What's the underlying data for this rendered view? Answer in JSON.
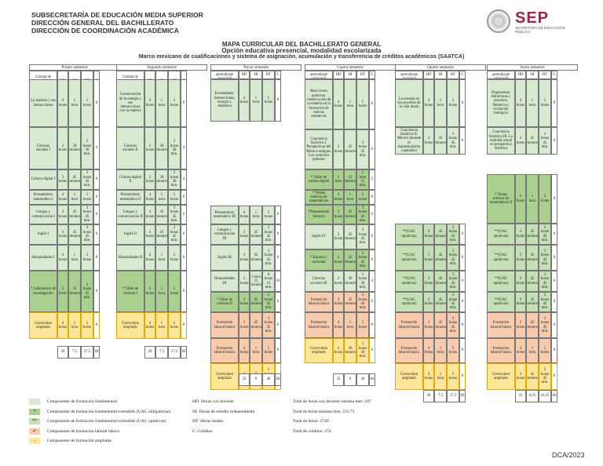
{
  "header": {
    "lines": [
      "SUBSECRETARÍA DE EDUCACIÓN MEDIA SUPERIOR",
      "DIRECCIÓN GENERAL DEL BACHILLERATO",
      "DIRECCIÓN DE COORDINACIÓN ACADÉMICA"
    ],
    "logo_text": "SEP",
    "logo_sub": "SECRETARÍA DE EDUCACIÓN PÚBLICA"
  },
  "titles": {
    "t1": "MAPA CURRICULAR DEL BACHILLERATO GENERAL",
    "t2": "Opción educativa presencial, modalidad escolarizada",
    "t3": "Marco mexicano de cualificaciones y sistema de asignación, acumulación y transferencia de créditos académicos (SAATCA)"
  },
  "semesters": [
    "Primer semestre",
    "Segundo semestre",
    "Tercer semestre",
    "Cuarto semestre",
    "Quinto semestre",
    "Sexto semestre"
  ],
  "col_headers": {
    "uac": "Unidad de aprendizaje curricular",
    "hd": "HD",
    "hi": "HI",
    "ht": "HT",
    "c": "C"
  },
  "sem1": [
    {
      "name": "La materia y sus interacciones",
      "hd": "4 horas",
      "hi": "1 hora",
      "ht": "5 horas",
      "c": "8",
      "color": "g"
    },
    {
      "name": "Ciencias sociales I",
      "hd": "2 horas",
      "hi": "30 minutos",
      "ht": "2 horas 30 min.",
      "c": "4",
      "color": "g"
    },
    {
      "name": "Cultura digital I",
      "hd": "3 horas",
      "hi": "45 minutos",
      "ht": "3 horas 45 min.",
      "c": "6",
      "color": "g"
    },
    {
      "name": "Pensamiento matemático I",
      "hd": "4 horas",
      "hi": "1 hora",
      "ht": "5 horas",
      "c": "8",
      "color": "g"
    },
    {
      "name": "Lengua y comunicación I",
      "hd": "3 horas",
      "hi": "45 minutos",
      "ht": "3 horas 45 min.",
      "c": "6",
      "color": "g"
    },
    {
      "name": "Inglés I",
      "hd": "3 horas",
      "hi": "45 minutos",
      "ht": "3 horas 45 min.",
      "c": "6",
      "color": "g"
    },
    {
      "name": "Humanidades I",
      "hd": "4 horas",
      "hi": "1 hora",
      "ht": "5 horas",
      "c": "8",
      "color": "g"
    },
    {
      "name": "* Laboratorio de investigación",
      "hd": "3 horas",
      "hi": "45 minutos",
      "ht": "3 horas 45 min.",
      "c": "6",
      "color": "gd"
    },
    {
      "name": "Curriculum ampliado",
      "hd": "4 horas",
      "hi": "1 hora",
      "ht": "5 horas",
      "c": "8",
      "color": "y"
    }
  ],
  "sem1_totals": {
    "hd": "30",
    "hi": "7.5",
    "ht": "37.5",
    "c": "60"
  },
  "sem2": [
    {
      "name": "Conservación de la energía y sus interacciones con la materia",
      "hd": "4 horas",
      "hi": "1 hora",
      "ht": "5 horas",
      "c": "8",
      "color": "g"
    },
    {
      "name": "Ciencias sociales II",
      "hd": "2 horas",
      "hi": "30 minutos",
      "ht": "2 horas 30 min.",
      "c": "4",
      "color": "g"
    },
    {
      "name": "Cultura digital II",
      "hd": "2 horas",
      "hi": "30 minutos",
      "ht": "2 horas 30 min.",
      "c": "4",
      "color": "g"
    },
    {
      "name": "Pensamiento matemático II",
      "hd": "4 horas",
      "hi": "1 hora",
      "ht": "5 horas",
      "c": "8",
      "color": "g"
    },
    {
      "name": "Lengua y comunicación II",
      "hd": "3 horas",
      "hi": "45 minutos",
      "ht": "3 horas 45 min.",
      "c": "6",
      "color": "g"
    },
    {
      "name": "Inglés II",
      "hd": "3 horas",
      "hi": "45 minutos",
      "ht": "3 horas 45 min.",
      "c": "6",
      "color": "g"
    },
    {
      "name": "Humanidades II",
      "hd": "4 horas",
      "hi": "1 hora",
      "ht": "5 horas",
      "c": "8",
      "color": "g"
    },
    {
      "name": "* Taller de ciencias I",
      "hd": "4 horas",
      "hi": "1 hora",
      "ht": "5 horas",
      "c": "8",
      "color": "gd"
    },
    {
      "name": "Curriculum ampliado",
      "hd": "4 horas",
      "hi": "1 hora",
      "ht": "5 horas",
      "c": "8",
      "color": "y"
    }
  ],
  "sem2_totals": {
    "hd": "30",
    "hi": "7.5",
    "ht": "37.5",
    "c": "60"
  },
  "sem3": [
    {
      "name": "Ecosistemas: interacciones, energía y dinámica",
      "hd": "4 horas",
      "hi": "1 hora",
      "ht": "5 horas",
      "c": "8",
      "color": "g"
    },
    {
      "name": "Pensamiento matemático III",
      "hd": "4 horas",
      "hi": "1 hora",
      "ht": "5 horas",
      "c": "8",
      "color": "g"
    },
    {
      "name": "Lengua y comunicación III",
      "hd": "3 horas",
      "hi": "45 minutos",
      "ht": "3 horas 45 min.",
      "c": "6",
      "color": "g"
    },
    {
      "name": "Inglés III",
      "hd": "3 horas",
      "hi": "45 minutos",
      "ht": "3 horas 45 min.",
      "c": "6",
      "color": "g"
    },
    {
      "name": "Humanidades III",
      "hd": "5 horas",
      "hi": "1 hora 15 minutos",
      "ht": "6 horas 15 min.",
      "c": "10",
      "color": "g"
    },
    {
      "name": "* Taller de ciencias II",
      "hd": "3 horas",
      "hi": "45 minutos",
      "ht": "3 horas 45 min.",
      "c": "6",
      "color": "gd"
    },
    {
      "name": "Formación laboral básica",
      "hd": "3 horas",
      "hi": "45 minutos",
      "ht": "3 horas 45 min.",
      "c": "6",
      "color": "o"
    },
    {
      "name": "Formación laboral básica",
      "hd": "4 horas",
      "hi": "1 hora",
      "ht": "5 horas",
      "c": "8",
      "color": "o"
    },
    {
      "name": "Curriculum ampliado",
      "hd": "3 horas",
      "hi": "45 minutos",
      "ht": "3 horas 45 min.",
      "c": "6",
      "color": "y"
    }
  ],
  "sem3_totals": {
    "hd": "32",
    "hi": "8",
    "ht": "40",
    "c": "64"
  },
  "sem4": [
    {
      "name": "Reacciones químicas: conservación de la materia en la formación de nuevas sustancias",
      "hd": "4 horas",
      "hi": "1 hora",
      "ht": "5 horas",
      "c": "8",
      "color": "g"
    },
    {
      "name": "Conciencia histórica I. Perspectivas del México antiguo. Los contextos globales",
      "hd": "3 horas",
      "hi": "45 minutos",
      "ht": "3 horas 45 min.",
      "c": "6",
      "color": "g"
    },
    {
      "name": "* Taller de cultura digital",
      "hd": "1 hora",
      "hi": "15 minutos",
      "ht": "1 hora 15 min.",
      "c": "2",
      "color": "gd"
    },
    {
      "name": "* Temas selectos de matemáticas",
      "hd": "4 horas",
      "hi": "1 hora",
      "ht": "5 horas",
      "c": "8",
      "color": "gd"
    },
    {
      "name": "*Pensamiento literario",
      "hd": "3 horas",
      "hi": "45 minutos",
      "ht": "3 horas 45 min.",
      "c": "6",
      "color": "gd"
    },
    {
      "name": "Inglés IV",
      "hd": "3 horas",
      "hi": "45 minutos",
      "ht": "3 horas 45 min.",
      "c": "6",
      "color": "g"
    },
    {
      "name": "* Espacio y sociedad",
      "hd": "3 horas",
      "hi": "45 minutos",
      "ht": "3 horas 45 min.",
      "c": "6",
      "color": "gd"
    },
    {
      "name": "Ciencias sociales III",
      "hd": "2 horas",
      "hi": "30 minutos",
      "ht": "2 horas 30 min.",
      "c": "4",
      "color": "g"
    },
    {
      "name": "Formación laboral básica",
      "hd": "3 horas",
      "hi": "45 minutos",
      "ht": "3 horas 45 min.",
      "c": "6",
      "color": "o"
    },
    {
      "name": "Formación laboral básica",
      "hd": "4 horas",
      "hi": "1 hora",
      "ht": "5 horas",
      "c": "8",
      "color": "o"
    },
    {
      "name": "Curriculum ampliado",
      "hd": "2 horas",
      "hi": "30 minutos",
      "ht": "2 horas 30 min.",
      "c": "4",
      "color": "y"
    }
  ],
  "sem4_totals": {
    "hd": "32",
    "hi": "8",
    "ht": "40",
    "c": "64"
  },
  "sem5": [
    {
      "name": "La energía en los procesos de la vida diaria",
      "hd": "4 horas",
      "hi": "1 hora",
      "ht": "5 horas",
      "c": "8",
      "color": "g"
    },
    {
      "name": "Conciencia histórica II. México durante el expansionismo capitalista",
      "hd": "3 horas",
      "hi": "45 minutos",
      "ht": "3 horas 45 min.",
      "c": "6",
      "color": "g"
    },
    {
      "name": "**(UAC optativas)",
      "hd": "3 horas",
      "hi": "45 minutos",
      "ht": "3 horas 45 min.",
      "c": "6",
      "color": "gm"
    },
    {
      "name": "**(UAC optativas)",
      "hd": "3 horas",
      "hi": "45 minutos",
      "ht": "3 horas 45 min.",
      "c": "6",
      "color": "gm"
    },
    {
      "name": "**(UAC optativas)",
      "hd": "3 horas",
      "hi": "45 minutos",
      "ht": "3 horas 45 min.",
      "c": "6",
      "color": "gm"
    },
    {
      "name": "**(UAC optativas)",
      "hd": "3 horas",
      "hi": "45 minutos",
      "ht": "3 horas 45 min.",
      "c": "6",
      "color": "gm"
    },
    {
      "name": "Formación laboral básica",
      "hd": "3 horas",
      "hi": "45 minutos",
      "ht": "3 horas 45 min.",
      "c": "6",
      "color": "o"
    },
    {
      "name": "Formación laboral básica",
      "hd": "4 horas",
      "hi": "1 hora",
      "ht": "5 horas",
      "c": "8",
      "color": "o"
    },
    {
      "name": "Curriculum ampliado",
      "hd": "4 horas",
      "hi": "1 hora",
      "ht": "5 horas",
      "c": "8",
      "color": "y"
    }
  ],
  "sem5_totals": {
    "hd": "30",
    "hi": "7.5",
    "ht": "37.5",
    "c": "60"
  },
  "sem6": [
    {
      "name": "Organismos: estructuras y procesos. Herencia y evolución biológica",
      "hd": "4 horas",
      "hi": "1 hora",
      "ht": "5 horas",
      "c": "8",
      "color": "g"
    },
    {
      "name": "Conciencia histórica III. La realidad actual en perspectiva histórica",
      "hd": "3 horas",
      "hi": "45 minutos",
      "ht": "3 horas 45 min.",
      "c": "6",
      "color": "g"
    },
    {
      "name": "* Temas selectos de matemáticas II",
      "hd": "4 horas",
      "hi": "1 hora",
      "ht": "5 horas",
      "c": "8",
      "color": "gd"
    },
    {
      "name": "**(UAC optativas)",
      "hd": "3 horas",
      "hi": "45 minutos",
      "ht": "3 horas 45 min.",
      "c": "6",
      "color": "gm"
    },
    {
      "name": "**(UAC optativas)",
      "hd": "3 horas",
      "hi": "45 minutos",
      "ht": "3 horas 45 min.",
      "c": "6",
      "color": "gm"
    },
    {
      "name": "**(UAC optativas)",
      "hd": "3 horas",
      "hi": "45 minutos",
      "ht": "3 horas 45 min.",
      "c": "6",
      "color": "gm"
    },
    {
      "name": "**(UAC optativas)",
      "hd": "3 horas",
      "hi": "45 minutos",
      "ht": "3 horas 45 min.",
      "c": "6",
      "color": "gm"
    },
    {
      "name": "Formación laboral básica",
      "hd": "3 horas",
      "hi": "45 minutos",
      "ht": "3 horas 45 min.",
      "c": "6",
      "color": "o"
    },
    {
      "name": "Formación laboral básica",
      "hd": "4 horas",
      "hi": "1 hora",
      "ht": "5 horas",
      "c": "8",
      "color": "o"
    },
    {
      "name": "Curriculum ampliado",
      "hd": "3 horas",
      "hi": "45 minutos",
      "ht": "3 horas 45 min.",
      "c": "6",
      "color": "y"
    }
  ],
  "sem6_totals": {
    "hd": "33",
    "hi": "8.25",
    "ht": "41.25",
    "c": "66"
  },
  "legend": {
    "items": [
      {
        "mark": "",
        "text": "Componente de formación fundamental",
        "color": "#d9ead3"
      },
      {
        "mark": "*",
        "text": "Componente de formación fundamental extendido (UAC obligatorias)",
        "color": "#a9d08e"
      },
      {
        "mark": "**",
        "text": "Componente de formación fundamental extendido (UAC optativas)",
        "color": "#c5e0b4"
      },
      {
        "mark": "✔",
        "text": "Componente de formación laboral básico",
        "color": "#f8cbad"
      },
      {
        "mark": "-",
        "text": "Componente de formación ampliada",
        "color": "#ffe699"
      }
    ],
    "abbrev": [
      "HD: Horas con docente",
      "HI: Horas de estudio independiente",
      "HT: Horas totales",
      "C: Créditos"
    ],
    "totals": [
      "Total de horas con docente semana mes: 187",
      "Total de horas semana mes: 233.75",
      "Total de horas: 3740",
      "Total de créditos: 374"
    ]
  },
  "footer": "DCA/2023"
}
